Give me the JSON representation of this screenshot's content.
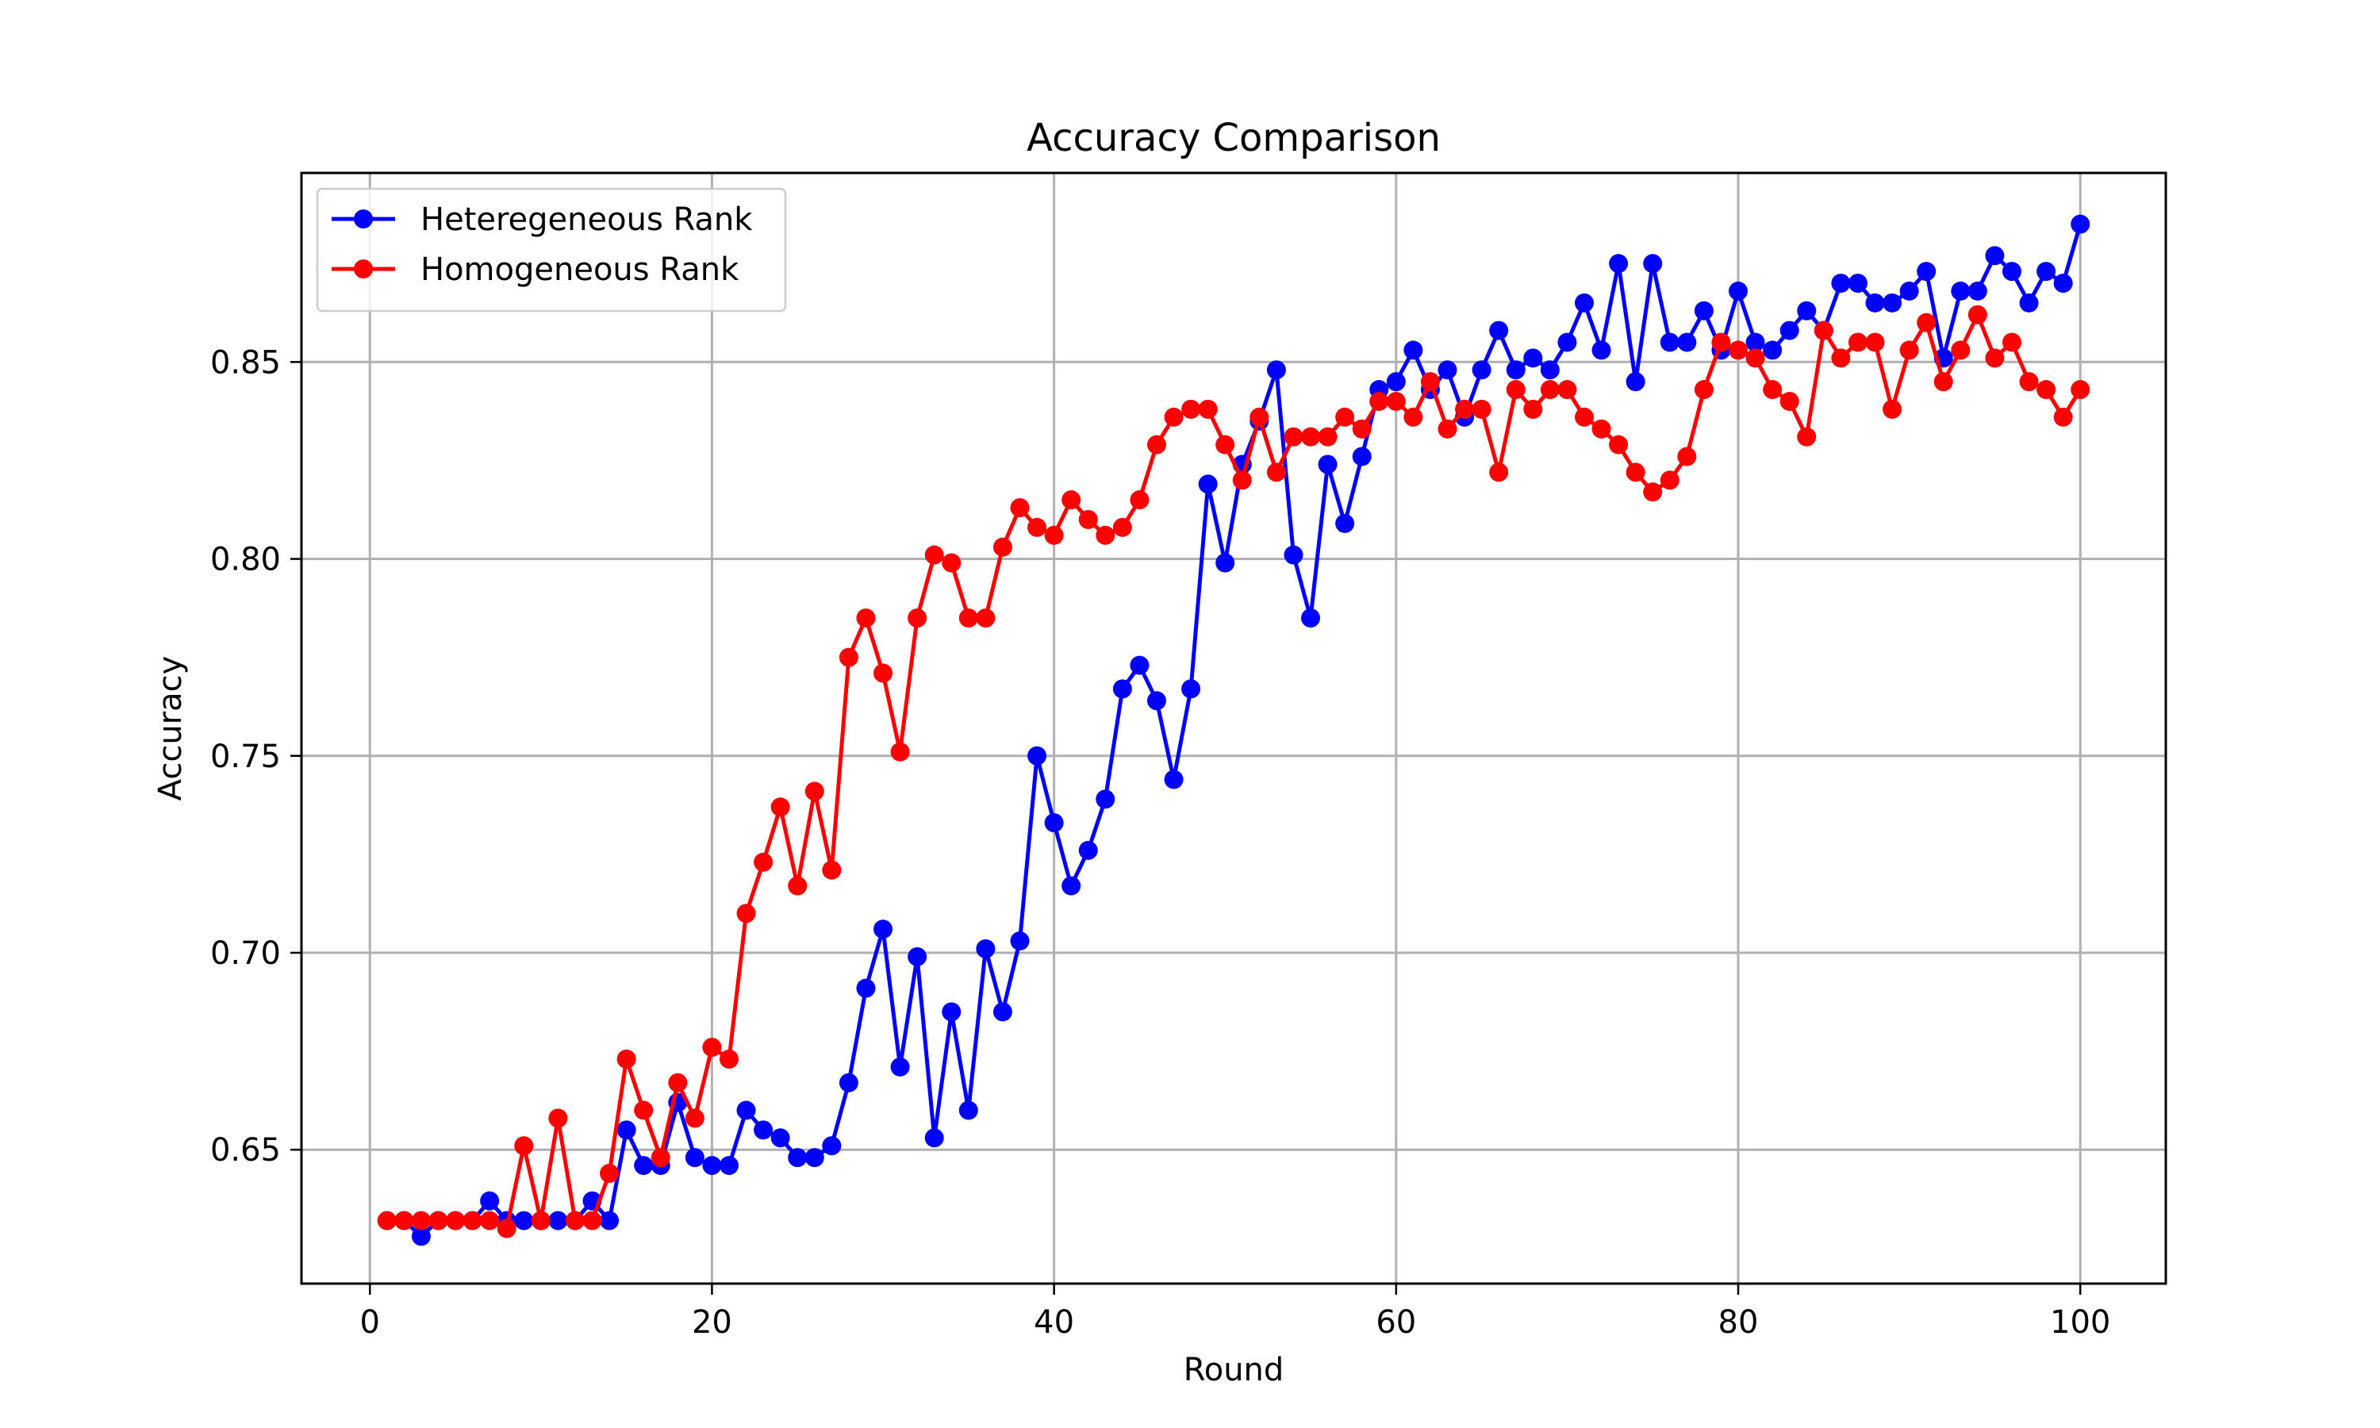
{
  "chart_data": {
    "type": "line",
    "title": "Accuracy Comparison",
    "xlabel": "Round",
    "ylabel": "Accuracy",
    "xlim": [
      -4,
      105
    ],
    "ylim": [
      0.616,
      0.898
    ],
    "xticks": [
      0,
      20,
      40,
      60,
      80,
      100
    ],
    "yticks": [
      0.65,
      0.7,
      0.75,
      0.8,
      0.85
    ],
    "grid": true,
    "legend_position": "top-left",
    "series": [
      {
        "name": "Heteregeneous Rank",
        "color": "#0000ff",
        "marker": "circle",
        "x": [
          1,
          2,
          3,
          4,
          5,
          6,
          7,
          8,
          9,
          10,
          11,
          12,
          13,
          14,
          15,
          16,
          17,
          18,
          19,
          20,
          21,
          22,
          23,
          24,
          25,
          26,
          27,
          28,
          29,
          30,
          31,
          32,
          33,
          34,
          35,
          36,
          37,
          38,
          39,
          40,
          41,
          42,
          43,
          44,
          45,
          46,
          47,
          48,
          49,
          50,
          51,
          52,
          53,
          54,
          55,
          56,
          57,
          58,
          59,
          60,
          61,
          62,
          63,
          64,
          65,
          66,
          67,
          68,
          69,
          70,
          71,
          72,
          73,
          74,
          75,
          76,
          77,
          78,
          79,
          80,
          81,
          82,
          83,
          84,
          85,
          86,
          87,
          88,
          89,
          90,
          91,
          92,
          93,
          94,
          95,
          96,
          97,
          98,
          99,
          100
        ],
        "y": [
          0.632,
          0.632,
          0.628,
          0.632,
          0.632,
          0.632,
          0.637,
          0.632,
          0.632,
          0.632,
          0.632,
          0.632,
          0.637,
          0.632,
          0.655,
          0.646,
          0.646,
          0.662,
          0.648,
          0.646,
          0.646,
          0.66,
          0.655,
          0.653,
          0.648,
          0.648,
          0.651,
          0.667,
          0.691,
          0.706,
          0.671,
          0.699,
          0.653,
          0.685,
          0.66,
          0.701,
          0.685,
          0.703,
          0.75,
          0.733,
          0.717,
          0.726,
          0.739,
          0.767,
          0.773,
          0.764,
          0.744,
          0.767,
          0.819,
          0.799,
          0.824,
          0.835,
          0.848,
          0.801,
          0.785,
          0.824,
          0.809,
          0.826,
          0.843,
          0.845,
          0.853,
          0.843,
          0.848,
          0.836,
          0.848,
          0.858,
          0.848,
          0.851,
          0.848,
          0.855,
          0.865,
          0.853,
          0.875,
          0.845,
          0.875,
          0.855,
          0.855,
          0.863,
          0.853,
          0.868,
          0.855,
          0.853,
          0.858,
          0.863,
          0.858,
          0.87,
          0.87,
          0.865,
          0.865,
          0.868,
          0.873,
          0.851,
          0.868,
          0.868,
          0.877,
          0.873,
          0.865,
          0.873,
          0.87,
          0.885
        ]
      },
      {
        "name": "Homogeneous Rank",
        "color": "#ff0000",
        "marker": "circle",
        "x": [
          1,
          2,
          3,
          4,
          5,
          6,
          7,
          8,
          9,
          10,
          11,
          12,
          13,
          14,
          15,
          16,
          17,
          18,
          19,
          20,
          21,
          22,
          23,
          24,
          25,
          26,
          27,
          28,
          29,
          30,
          31,
          32,
          33,
          34,
          35,
          36,
          37,
          38,
          39,
          40,
          41,
          42,
          43,
          44,
          45,
          46,
          47,
          48,
          49,
          50,
          51,
          52,
          53,
          54,
          55,
          56,
          57,
          58,
          59,
          60,
          61,
          62,
          63,
          64,
          65,
          66,
          67,
          68,
          69,
          70,
          71,
          72,
          73,
          74,
          75,
          76,
          77,
          78,
          79,
          80,
          81,
          82,
          83,
          84,
          85,
          86,
          87,
          88,
          89,
          90,
          91,
          92,
          93,
          94,
          95,
          96,
          97,
          98,
          99,
          100
        ],
        "y": [
          0.632,
          0.632,
          0.632,
          0.632,
          0.632,
          0.632,
          0.632,
          0.63,
          0.651,
          0.632,
          0.658,
          0.632,
          0.632,
          0.644,
          0.673,
          0.66,
          0.648,
          0.667,
          0.658,
          0.676,
          0.673,
          0.71,
          0.723,
          0.737,
          0.717,
          0.741,
          0.721,
          0.775,
          0.785,
          0.771,
          0.751,
          0.785,
          0.801,
          0.799,
          0.785,
          0.785,
          0.803,
          0.813,
          0.808,
          0.806,
          0.815,
          0.81,
          0.806,
          0.808,
          0.815,
          0.829,
          0.836,
          0.838,
          0.838,
          0.829,
          0.82,
          0.836,
          0.822,
          0.831,
          0.831,
          0.831,
          0.836,
          0.833,
          0.84,
          0.84,
          0.836,
          0.845,
          0.833,
          0.838,
          0.838,
          0.822,
          0.843,
          0.838,
          0.843,
          0.843,
          0.836,
          0.833,
          0.829,
          0.822,
          0.817,
          0.82,
          0.826,
          0.843,
          0.855,
          0.853,
          0.851,
          0.843,
          0.84,
          0.831,
          0.858,
          0.851,
          0.855,
          0.855,
          0.838,
          0.853,
          0.86,
          0.845,
          0.853,
          0.862,
          0.851,
          0.855,
          0.845,
          0.843,
          0.836,
          0.843
        ]
      }
    ]
  }
}
